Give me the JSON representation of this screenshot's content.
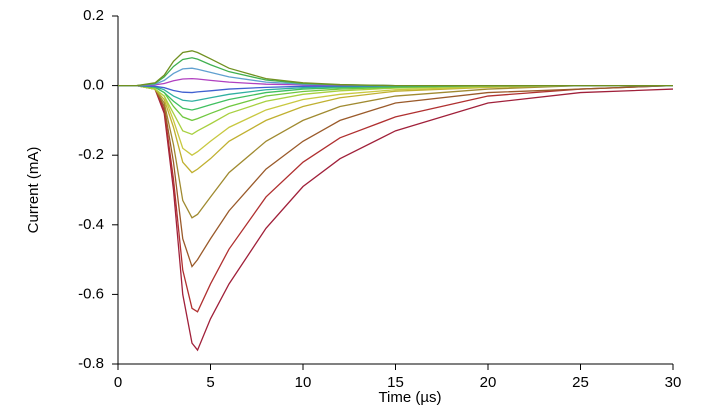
{
  "chart_data": {
    "type": "line",
    "x_label": "Time (µs)",
    "y_label": "Current (mA)",
    "xlim": [
      0,
      30
    ],
    "xticks": [
      0,
      5,
      10,
      15,
      20,
      25,
      30
    ],
    "ylim": [
      -0.8,
      0.2
    ],
    "yticks": [
      -0.8,
      -0.6,
      -0.4,
      -0.2,
      {
        "value": 0,
        "label": "0.0"
      },
      0.2
    ],
    "x": [
      0,
      1,
      2,
      2.5,
      3,
      3.5,
      4,
      4.3,
      5,
      6,
      8,
      10,
      12,
      15,
      20,
      25,
      30
    ],
    "series": [
      {
        "color": "#a0203a",
        "values": [
          0,
          0,
          -0.01,
          -0.08,
          -0.3,
          -0.6,
          -0.74,
          -0.76,
          -0.67,
          -0.57,
          -0.41,
          -0.29,
          -0.21,
          -0.13,
          -0.05,
          -0.02,
          -0.01
        ]
      },
      {
        "color": "#b03030",
        "values": [
          0,
          0,
          -0.01,
          -0.07,
          -0.27,
          -0.53,
          -0.64,
          -0.65,
          -0.57,
          -0.47,
          -0.32,
          -0.22,
          -0.15,
          -0.09,
          -0.03,
          -0.01,
          0
        ]
      },
      {
        "color": "#9a5a2a",
        "values": [
          0,
          0,
          -0.01,
          -0.06,
          -0.22,
          -0.44,
          -0.52,
          -0.5,
          -0.44,
          -0.36,
          -0.24,
          -0.16,
          -0.1,
          -0.05,
          -0.02,
          -0.01,
          0
        ]
      },
      {
        "color": "#a08a30",
        "values": [
          0,
          0,
          -0.01,
          -0.05,
          -0.17,
          -0.33,
          -0.38,
          -0.37,
          -0.32,
          -0.25,
          -0.16,
          -0.1,
          -0.06,
          -0.03,
          -0.01,
          0,
          0
        ]
      },
      {
        "color": "#c0b030",
        "values": [
          0,
          0,
          -0.01,
          -0.04,
          -0.12,
          -0.22,
          -0.25,
          -0.24,
          -0.21,
          -0.16,
          -0.1,
          -0.06,
          -0.035,
          -0.016,
          -0.005,
          0,
          0
        ]
      },
      {
        "color": "#c8c840",
        "values": [
          0,
          0,
          -0.01,
          -0.03,
          -0.1,
          -0.18,
          -0.2,
          -0.19,
          -0.16,
          -0.12,
          -0.07,
          -0.04,
          -0.025,
          -0.012,
          -0.004,
          0,
          0
        ]
      },
      {
        "color": "#a8d040",
        "values": [
          0,
          0,
          -0.01,
          -0.03,
          -0.08,
          -0.13,
          -0.14,
          -0.13,
          -0.11,
          -0.08,
          -0.045,
          -0.025,
          -0.015,
          -0.007,
          -0.002,
          0,
          0
        ]
      },
      {
        "color": "#70c840",
        "values": [
          0,
          0,
          -0.005,
          -0.02,
          -0.06,
          -0.09,
          -0.1,
          -0.095,
          -0.08,
          -0.06,
          -0.03,
          -0.017,
          -0.01,
          -0.005,
          0,
          0,
          0
        ]
      },
      {
        "color": "#40c060",
        "values": [
          0,
          0,
          -0.005,
          -0.02,
          -0.045,
          -0.065,
          -0.07,
          -0.066,
          -0.055,
          -0.04,
          -0.02,
          -0.01,
          -0.006,
          -0.003,
          0,
          0,
          0
        ]
      },
      {
        "color": "#30b0a0",
        "values": [
          0,
          0,
          -0.003,
          -0.012,
          -0.03,
          -0.042,
          -0.045,
          -0.042,
          -0.035,
          -0.025,
          -0.012,
          -0.006,
          -0.003,
          -0.001,
          0,
          0,
          0
        ]
      },
      {
        "color": "#4060d0",
        "values": [
          0,
          0,
          -0.002,
          -0.006,
          -0.014,
          -0.019,
          -0.02,
          -0.018,
          -0.015,
          -0.01,
          -0.005,
          -0.002,
          -0.001,
          0,
          0,
          0,
          0
        ]
      },
      {
        "color": "#b040c0",
        "values": [
          0,
          0,
          0.002,
          0.006,
          0.014,
          0.019,
          0.02,
          0.019,
          0.015,
          0.01,
          0.004,
          0.002,
          0.001,
          0,
          0,
          0,
          0
        ]
      },
      {
        "color": "#60a0d0",
        "values": [
          0,
          0,
          0.004,
          0.015,
          0.035,
          0.048,
          0.05,
          0.047,
          0.038,
          0.025,
          0.01,
          0.004,
          0.002,
          0,
          0,
          0,
          0
        ]
      },
      {
        "color": "#40b050",
        "values": [
          0,
          0,
          0.006,
          0.025,
          0.055,
          0.075,
          0.08,
          0.076,
          0.06,
          0.04,
          0.016,
          0.006,
          0.002,
          0,
          0,
          0,
          0
        ]
      },
      {
        "color": "#709020",
        "values": [
          0,
          0,
          0.008,
          0.03,
          0.07,
          0.095,
          0.1,
          0.095,
          0.077,
          0.05,
          0.02,
          0.008,
          0.003,
          0,
          0,
          0,
          0
        ]
      }
    ]
  }
}
